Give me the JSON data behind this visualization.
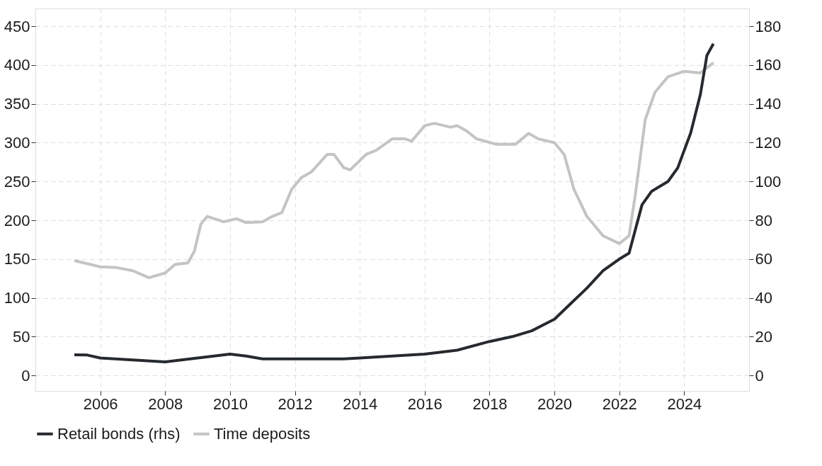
{
  "chart_data": {
    "type": "line",
    "xlim": [
      2004,
      2026
    ],
    "xticks": [
      2006,
      2008,
      2010,
      2012,
      2014,
      2016,
      2018,
      2020,
      2022,
      2024
    ],
    "ylim": [
      -20,
      473
    ],
    "yticks": [
      0,
      50,
      100,
      150,
      200,
      250,
      300,
      350,
      400,
      450
    ],
    "y2lim": [
      -8,
      189.2
    ],
    "y2ticks": [
      0,
      20,
      40,
      60,
      80,
      100,
      120,
      140,
      160,
      180
    ],
    "grid": true,
    "legend": "bottom",
    "series": [
      {
        "name": "Retail bonds (rhs)",
        "color": "#262a2e",
        "axis": "y2",
        "x": [
          2005.2,
          2005.6,
          2006,
          2007,
          2008,
          2008.5,
          2009,
          2009.5,
          2010,
          2010.5,
          2011,
          2012,
          2013,
          2013.5,
          2014,
          2015,
          2016,
          2017,
          2018,
          2018.7,
          2019.3,
          2020,
          2020.5,
          2021,
          2021.5,
          2022,
          2022.3,
          2022.7,
          2023,
          2023.5,
          2023.8,
          2024.2,
          2024.5,
          2024.7,
          2024.9
        ],
        "values": [
          10.6,
          10.5,
          9,
          8,
          7,
          8,
          9,
          10,
          11,
          10,
          8.5,
          8.5,
          8.5,
          8.5,
          9,
          10,
          11,
          13,
          17.5,
          20,
          23,
          29,
          37,
          45,
          54,
          60,
          63,
          88,
          95,
          100,
          107,
          125,
          145,
          165,
          171
        ]
      },
      {
        "name": "Time deposits",
        "color": "#c3c4c4",
        "x": [
          2005.2,
          2005.5,
          2006,
          2006.5,
          2007,
          2007.5,
          2008,
          2008.3,
          2008.7,
          2008.9,
          2009.1,
          2009.3,
          2009.8,
          2010.2,
          2010.5,
          2011,
          2011.3,
          2011.6,
          2011.9,
          2012.2,
          2012.5,
          2013,
          2013.2,
          2013.5,
          2013.7,
          2014.2,
          2014.5,
          2015,
          2015.4,
          2015.6,
          2016,
          2016.3,
          2016.8,
          2017,
          2017.3,
          2017.6,
          2018.2,
          2018.8,
          2019.2,
          2019.5,
          2020,
          2020.3,
          2020.6,
          2021,
          2021.5,
          2022,
          2022.3,
          2022.5,
          2022.8,
          2023.1,
          2023.5,
          2024,
          2024.5,
          2024.9
        ],
        "values": [
          148,
          145,
          140,
          139,
          135,
          126,
          132,
          143,
          145,
          160,
          195,
          205,
          198,
          202,
          197,
          198,
          205,
          210,
          240,
          255,
          262,
          285,
          285,
          268,
          265,
          285,
          290,
          305,
          305,
          302,
          322,
          325,
          320,
          322,
          315,
          305,
          298,
          298,
          312,
          305,
          300,
          285,
          240,
          205,
          180,
          170,
          180,
          235,
          330,
          365,
          385,
          392,
          390,
          403
        ]
      }
    ]
  }
}
